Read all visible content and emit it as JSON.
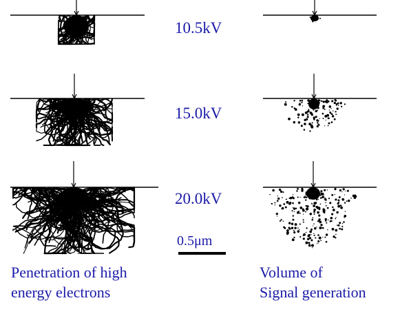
{
  "rows": [
    {
      "voltage": "10.5kV"
    },
    {
      "voltage": "15.0kV"
    },
    {
      "voltage": "20.0kV"
    }
  ],
  "scale_bar": {
    "label": "0.5μm"
  },
  "captions": {
    "left": [
      "Penetration of high",
      "energy electrons"
    ],
    "right": [
      "Volume of",
      "Signal generation"
    ]
  },
  "colors": {
    "label_text": "#1a1aa8",
    "ink": "#000000"
  }
}
